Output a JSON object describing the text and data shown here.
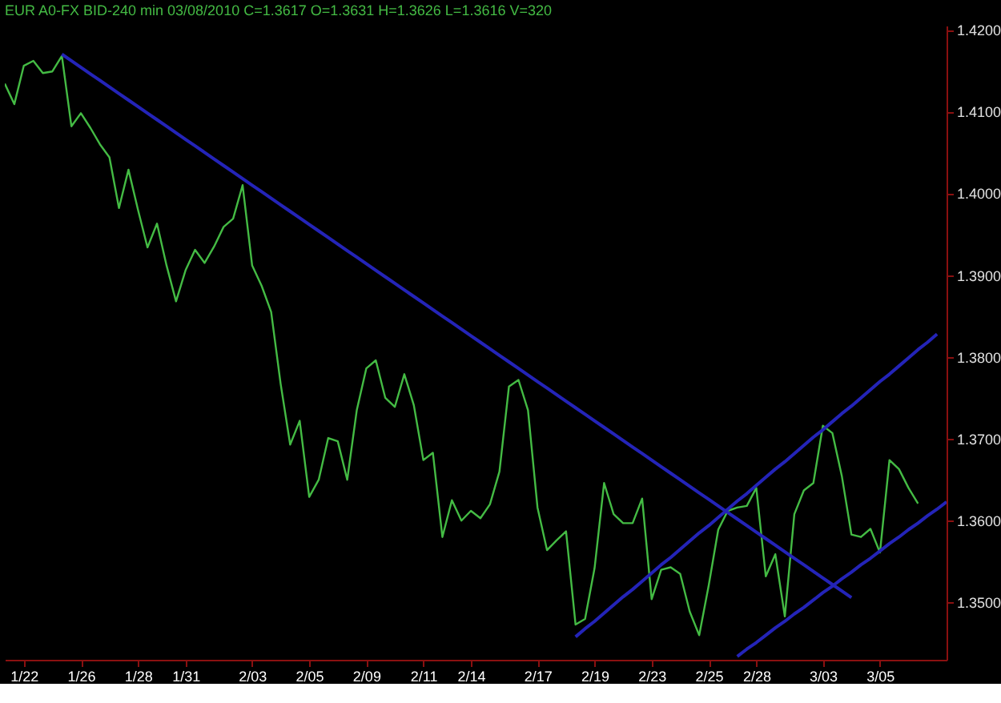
{
  "chart_data": {
    "type": "line",
    "title": "EUR A0-FX BID-240 min 03/08/2010 C=1.3617 O=1.3631 H=1.3626 L=1.3616 V=320",
    "categories": [
      null,
      null,
      "1/22",
      null,
      null,
      null,
      null,
      null,
      "1/26",
      null,
      null,
      null,
      null,
      null,
      "1/28",
      null,
      null,
      null,
      null,
      "1/31",
      null,
      null,
      null,
      null,
      null,
      null,
      "2/03",
      null,
      null,
      null,
      null,
      null,
      "2/05",
      null,
      null,
      null,
      null,
      null,
      "2/09",
      null,
      null,
      null,
      null,
      null,
      "2/11",
      null,
      null,
      null,
      null,
      "2/14",
      null,
      null,
      null,
      null,
      null,
      null,
      "2/17",
      null,
      null,
      null,
      null,
      null,
      "2/19",
      null,
      null,
      null,
      null,
      null,
      "2/23",
      null,
      null,
      null,
      null,
      null,
      "2/25",
      null,
      null,
      null,
      null,
      "2/28",
      null,
      null,
      null,
      null,
      null,
      null,
      "3/03",
      null,
      null,
      null,
      null,
      null,
      "3/05",
      null,
      null,
      null,
      null,
      null,
      null,
      null
    ],
    "series": [
      {
        "color": "#44bb44",
        "values": [
          1.4134,
          1.4109,
          1.4156,
          1.4162,
          1.4147,
          1.4149,
          1.4168,
          1.4082,
          1.4098,
          1.408,
          1.406,
          1.4044,
          1.3982,
          1.4029,
          1.398,
          1.3934,
          1.3963,
          1.3912,
          1.3868,
          1.3906,
          1.3931,
          1.3915,
          1.3935,
          1.3959,
          1.3969,
          1.401,
          1.3912,
          1.3887,
          1.3855,
          1.3767,
          1.3693,
          1.3722,
          1.3629,
          1.365,
          1.3701,
          1.3697,
          1.365,
          1.3735,
          1.3786,
          1.3796,
          1.375,
          1.3739,
          1.3779,
          1.3741,
          1.3674,
          1.3683,
          1.358,
          1.3625,
          1.36,
          1.3612,
          1.3603,
          1.362,
          1.366,
          1.3764,
          1.3772,
          1.3735,
          1.3616,
          1.3564,
          1.3576,
          1.3587,
          1.3473,
          1.348,
          1.3542,
          1.3646,
          1.3608,
          1.3597,
          1.3597,
          1.3627,
          1.3504,
          1.354,
          1.3543,
          1.3535,
          1.3489,
          1.346,
          1.3521,
          1.3589,
          1.3612,
          1.3616,
          1.3618,
          1.364,
          1.3532,
          1.3559,
          1.3483,
          1.3608,
          1.3637,
          1.3646,
          1.3716,
          1.3707,
          1.3654,
          1.3583,
          1.358,
          1.359,
          1.3561,
          1.3674,
          1.3663,
          1.364,
          1.3621,
          null,
          null,
          null
        ]
      },
      {
        "type": "line",
        "color": "#2424b8",
        "values": [
          null,
          null,
          null,
          null,
          null,
          null,
          1.417,
          1.4162,
          1.4154,
          1.4146,
          1.4138,
          1.413,
          1.4122,
          1.4114,
          1.4106,
          1.4098,
          1.409,
          1.4082,
          1.4074,
          1.4066,
          1.4058,
          1.405,
          1.4042,
          1.4034,
          1.4026,
          1.4018,
          1.401,
          1.4002,
          1.3994,
          1.3986,
          1.3978,
          1.397,
          1.3962,
          1.3954,
          1.3946,
          1.3938,
          1.393,
          1.3922,
          1.3914,
          1.3906,
          1.3898,
          1.389,
          1.3882,
          1.3874,
          1.3866,
          1.3858,
          1.385,
          1.3842,
          1.3834,
          1.3826,
          1.3818,
          1.381,
          1.3802,
          1.3794,
          1.3786,
          1.3778,
          1.377,
          1.3762,
          1.3754,
          1.3746,
          1.3738,
          1.373,
          1.3722,
          1.3714,
          1.3706,
          1.3698,
          1.369,
          1.3682,
          1.3674,
          1.3666,
          1.3658,
          1.365,
          1.3642,
          1.3634,
          1.3626,
          1.3618,
          1.361,
          1.3602,
          1.3594,
          1.3586,
          1.3578,
          1.357,
          1.3562,
          1.3554,
          1.3546,
          1.3538,
          1.353,
          1.3522,
          1.3514,
          1.3506,
          null,
          null,
          null,
          null,
          null,
          null,
          null,
          null,
          null,
          null
        ]
      },
      {
        "type": "line",
        "color": "#2424b8",
        "values": [
          null,
          null,
          null,
          null,
          null,
          null,
          null,
          null,
          null,
          null,
          null,
          null,
          null,
          null,
          null,
          null,
          null,
          null,
          null,
          null,
          null,
          null,
          null,
          null,
          null,
          null,
          null,
          null,
          null,
          null,
          null,
          null,
          null,
          null,
          null,
          null,
          null,
          null,
          null,
          null,
          null,
          null,
          null,
          null,
          null,
          null,
          null,
          null,
          null,
          null,
          null,
          null,
          null,
          null,
          null,
          null,
          null,
          null,
          null,
          null,
          1.3458,
          1.3468,
          1.3477,
          1.3487,
          1.3497,
          1.3507,
          1.3516,
          1.3526,
          1.3536,
          1.3546,
          1.3555,
          1.3565,
          1.3575,
          1.3585,
          1.3594,
          1.3604,
          1.3614,
          1.3624,
          1.3633,
          1.3643,
          1.3653,
          1.3663,
          1.3672,
          1.3682,
          1.3692,
          1.3702,
          1.3711,
          1.3721,
          1.3731,
          1.374,
          1.375,
          1.376,
          1.377,
          1.3779,
          1.3789,
          1.3799,
          1.3809,
          1.3818,
          1.3828,
          null
        ]
      },
      {
        "type": "line",
        "color": "#2424b8",
        "values": [
          null,
          null,
          null,
          null,
          null,
          null,
          null,
          null,
          null,
          null,
          null,
          null,
          null,
          null,
          null,
          null,
          null,
          null,
          null,
          null,
          null,
          null,
          null,
          null,
          null,
          null,
          null,
          null,
          null,
          null,
          null,
          null,
          null,
          null,
          null,
          null,
          null,
          null,
          null,
          null,
          null,
          null,
          null,
          null,
          null,
          null,
          null,
          null,
          null,
          null,
          null,
          null,
          null,
          null,
          null,
          null,
          null,
          null,
          null,
          null,
          null,
          null,
          null,
          null,
          null,
          null,
          null,
          null,
          null,
          null,
          null,
          null,
          null,
          null,
          null,
          null,
          null,
          1.3434,
          1.3443,
          1.3451,
          1.346,
          1.3469,
          1.3477,
          1.3486,
          1.3494,
          1.3503,
          1.3512,
          1.352,
          1.3529,
          1.3537,
          1.3546,
          1.3554,
          1.3563,
          1.3572,
          1.358,
          1.3589,
          1.3597,
          1.3606,
          1.3614,
          1.3623
        ]
      }
    ],
    "ylim": [
      1.343,
      1.4205
    ],
    "yticks": [
      {
        "value": 1.35,
        "label": "1.3500"
      },
      {
        "value": 1.36,
        "label": "1.3600"
      },
      {
        "value": 1.37,
        "label": "1.3700"
      },
      {
        "value": 1.38,
        "label": "1.3800"
      },
      {
        "value": 1.39,
        "label": "1.3900"
      },
      {
        "value": 1.4,
        "label": "1.4000"
      },
      {
        "value": 1.41,
        "label": "1.4100"
      },
      {
        "value": 1.42,
        "label": "1.4200"
      }
    ]
  }
}
